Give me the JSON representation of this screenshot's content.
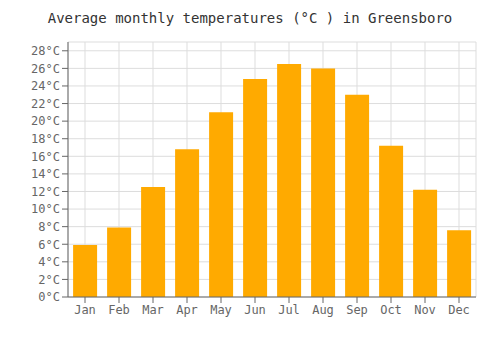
{
  "chart_data": {
    "type": "bar",
    "title": "Average monthly temperatures (°C ) in Greensboro",
    "categories": [
      "Jan",
      "Feb",
      "Mar",
      "Apr",
      "May",
      "Jun",
      "Jul",
      "Aug",
      "Sep",
      "Oct",
      "Nov",
      "Dec"
    ],
    "values": [
      5.9,
      7.9,
      12.5,
      16.8,
      21.0,
      24.8,
      26.5,
      26.0,
      23.0,
      17.2,
      12.2,
      7.6
    ],
    "color": "#FFAA00",
    "ylim": [
      0,
      29
    ],
    "yticks": [
      {
        "value": 0,
        "label": "0°C"
      },
      {
        "value": 2,
        "label": "2°C"
      },
      {
        "value": 4,
        "label": "4°C"
      },
      {
        "value": 6,
        "label": "6°C"
      },
      {
        "value": 8,
        "label": "8°C"
      },
      {
        "value": 10,
        "label": "10°C"
      },
      {
        "value": 12,
        "label": "12°C"
      },
      {
        "value": 14,
        "label": "14°C"
      },
      {
        "value": 16,
        "label": "16°C"
      },
      {
        "value": 18,
        "label": "18°C"
      },
      {
        "value": 20,
        "label": "20°C"
      },
      {
        "value": 22,
        "label": "22°C"
      },
      {
        "value": 24,
        "label": "24°C"
      },
      {
        "value": 26,
        "label": "26°C"
      },
      {
        "value": 28,
        "label": "28°C"
      }
    ],
    "grid": true
  }
}
